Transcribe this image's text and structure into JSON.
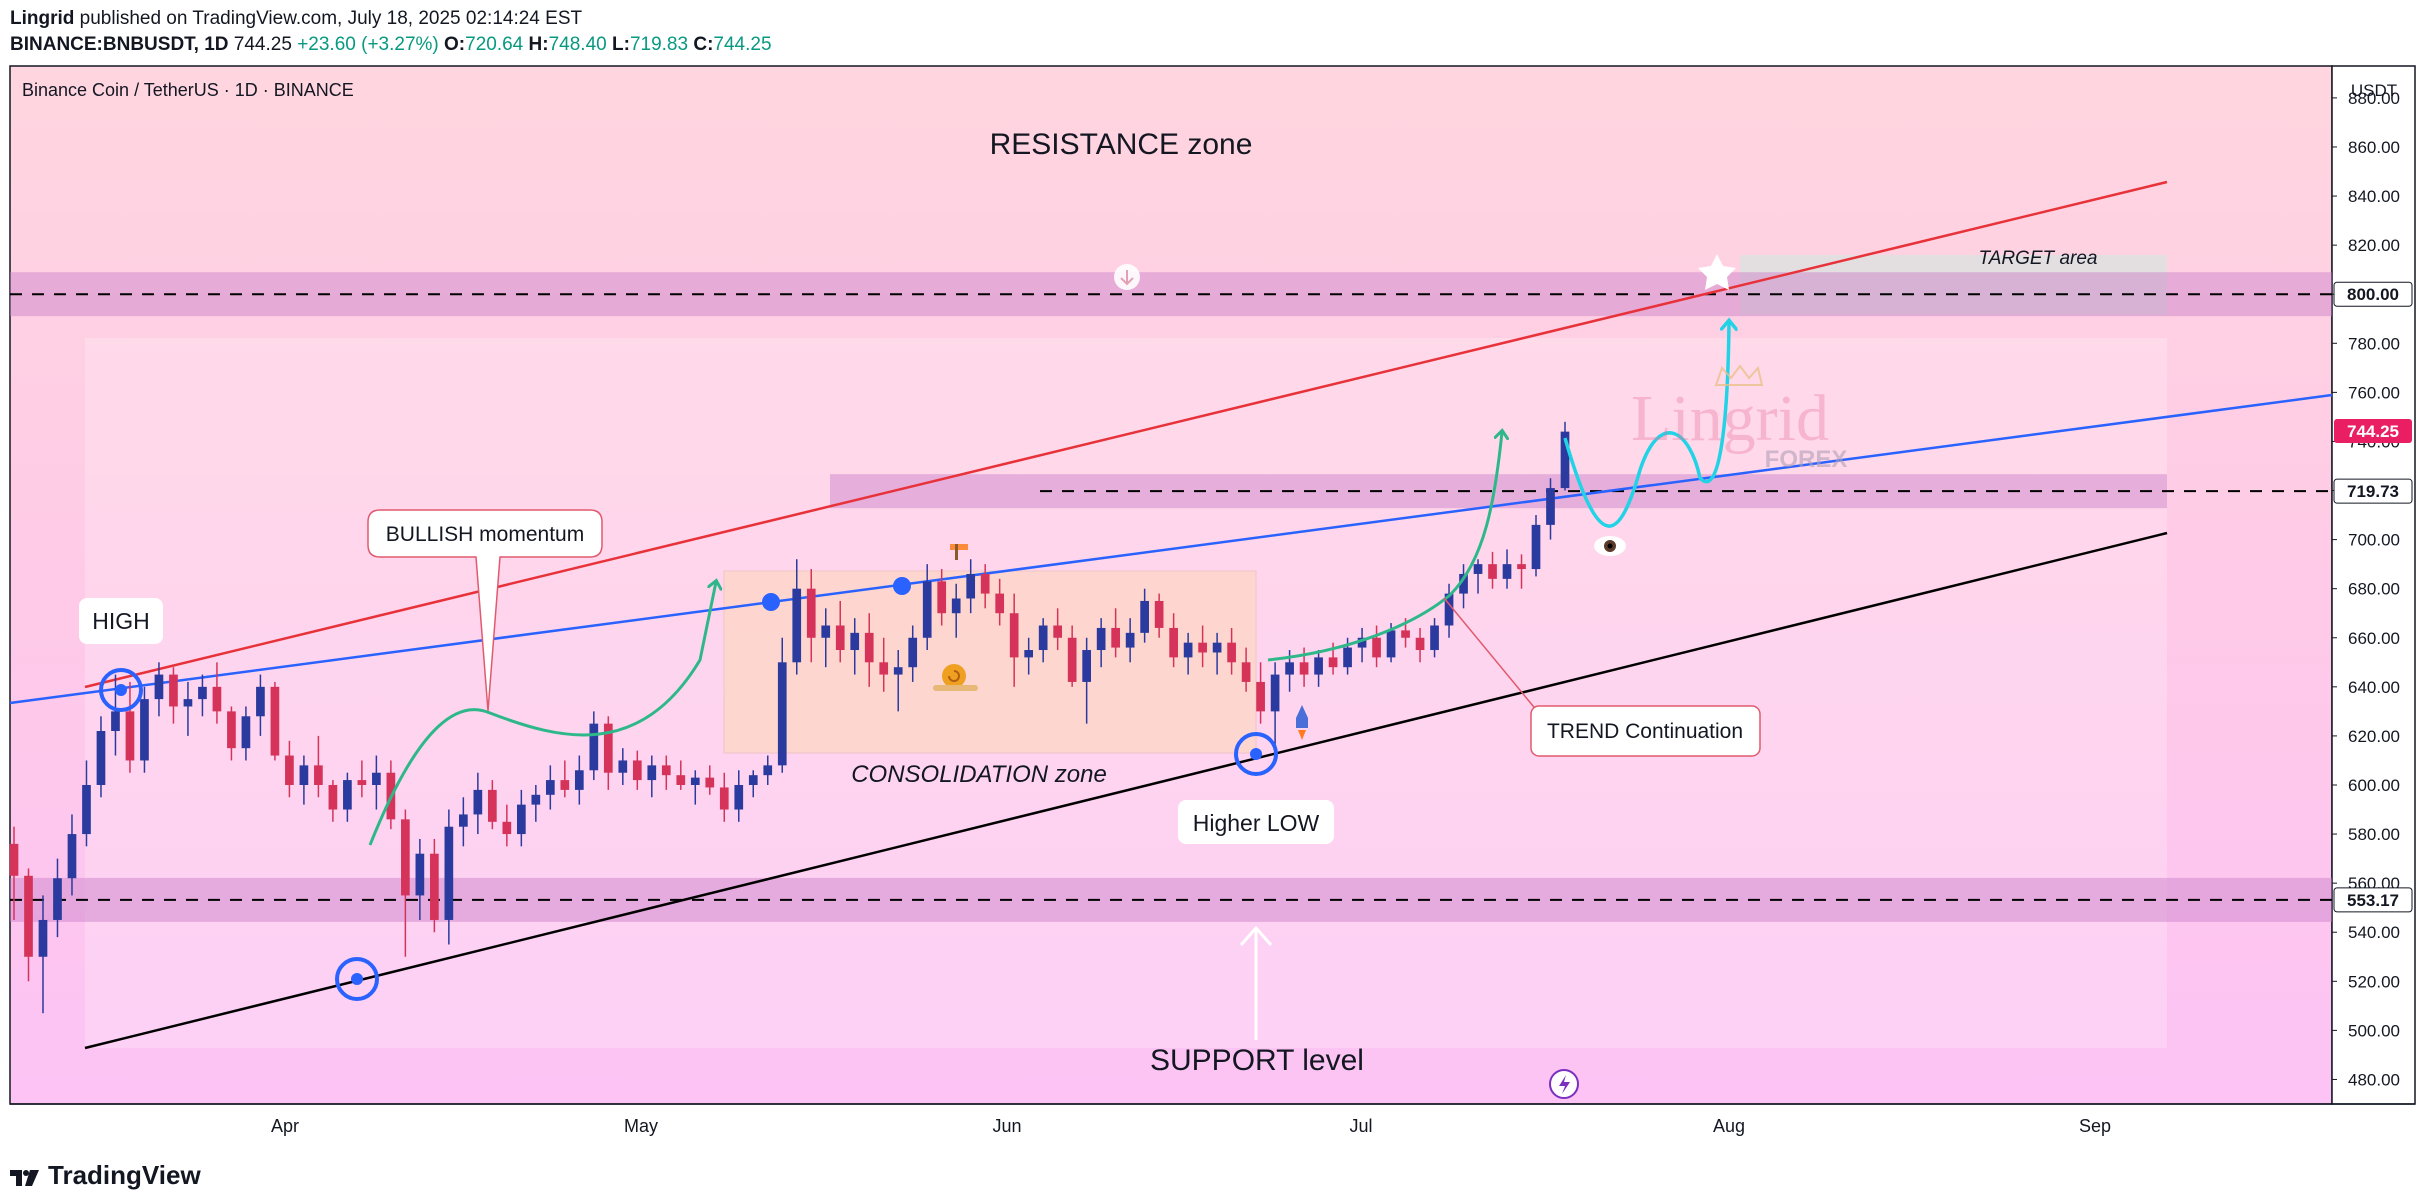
{
  "header": {
    "author": "Lingrid",
    "published": "published on TradingView.com, July 18, 2025 02:14:24 EST",
    "symbol": "BINANCE:BNBUSDT, 1D",
    "last": "744.25",
    "change": "+23.60 (+3.27%)",
    "open_label": "O:",
    "open": "720.64",
    "high_label": "H:",
    "high": "748.40",
    "low_label": "L:",
    "low": "719.83",
    "close_label": "C:",
    "close": "744.25"
  },
  "pane_title": "Binance Coin / TetherUS · 1D · BINANCE",
  "currency": "USDT",
  "footer": {
    "brand": "TradingView"
  },
  "annotations": {
    "resistance": "RESISTANCE zone",
    "target": "TARGET area",
    "bullish": "BULLISH momentum",
    "high": "HIGH",
    "consolidation": "CONSOLIDATION zone",
    "higher_low": "Higher LOW",
    "trend": "TREND Continuation",
    "support": "SUPPORT level",
    "watermark": "Lingrid",
    "watermark_sub": "FOREX"
  },
  "colors": {
    "bull": "#2b3a9e",
    "bear": "#d6335a",
    "resistance_line": "#e8323a",
    "mid_line": "#2962ff",
    "support_line": "#000000",
    "arrow_green": "#2eb88a",
    "arrow_cyan": "#22d3e6",
    "badge_red": "#e91e63",
    "zone_purple": "#c77dc7"
  },
  "chart_data": {
    "type": "candlestick",
    "x_ticks": [
      "Apr",
      "May",
      "Jun",
      "Jul",
      "Aug",
      "Sep"
    ],
    "y_ticks": [
      480,
      500,
      520,
      540,
      560,
      580,
      600,
      620,
      640,
      660,
      680,
      700,
      720,
      740,
      760,
      780,
      800,
      820,
      840,
      860,
      880
    ],
    "y_range": [
      470,
      893
    ],
    "price_labels": [
      {
        "value": 800.0,
        "text": "800.00",
        "style": "black"
      },
      {
        "value": 744.25,
        "text": "744.25",
        "style": "red"
      },
      {
        "value": 719.73,
        "text": "719.73",
        "style": "black"
      },
      {
        "value": 553.17,
        "text": "553.17",
        "style": "black"
      }
    ],
    "horizontal_levels": [
      800.0,
      719.73,
      553.17
    ],
    "candles": [
      [
        576,
        583,
        545,
        563
      ],
      [
        563,
        566,
        520,
        530
      ],
      [
        530,
        555,
        507,
        545
      ],
      [
        545,
        570,
        538,
        562
      ],
      [
        562,
        588,
        555,
        580
      ],
      [
        580,
        610,
        575,
        600
      ],
      [
        600,
        628,
        595,
        622
      ],
      [
        622,
        645,
        612,
        630
      ],
      [
        630,
        642,
        605,
        610
      ],
      [
        610,
        640,
        605,
        635
      ],
      [
        635,
        650,
        628,
        645
      ],
      [
        645,
        648,
        625,
        632
      ],
      [
        632,
        642,
        620,
        635
      ],
      [
        635,
        645,
        628,
        640
      ],
      [
        640,
        650,
        625,
        630
      ],
      [
        630,
        632,
        610,
        615
      ],
      [
        615,
        632,
        610,
        628
      ],
      [
        628,
        645,
        620,
        640
      ],
      [
        640,
        642,
        610,
        612
      ],
      [
        612,
        618,
        595,
        600
      ],
      [
        600,
        612,
        592,
        608
      ],
      [
        608,
        620,
        595,
        600
      ],
      [
        600,
        602,
        585,
        590
      ],
      [
        590,
        605,
        585,
        602
      ],
      [
        602,
        610,
        595,
        600
      ],
      [
        600,
        612,
        590,
        605
      ],
      [
        605,
        610,
        582,
        586
      ],
      [
        586,
        590,
        530,
        555
      ],
      [
        555,
        578,
        545,
        572
      ],
      [
        572,
        578,
        540,
        545
      ],
      [
        545,
        590,
        535,
        583
      ],
      [
        583,
        595,
        575,
        588
      ],
      [
        588,
        605,
        580,
        598
      ],
      [
        598,
        602,
        582,
        585
      ],
      [
        585,
        592,
        575,
        580
      ],
      [
        580,
        598,
        575,
        592
      ],
      [
        592,
        600,
        585,
        596
      ],
      [
        596,
        608,
        590,
        602
      ],
      [
        602,
        610,
        595,
        598
      ],
      [
        598,
        612,
        592,
        606
      ],
      [
        606,
        630,
        602,
        625
      ],
      [
        625,
        628,
        598,
        605
      ],
      [
        605,
        615,
        600,
        610
      ],
      [
        610,
        614,
        598,
        602
      ],
      [
        602,
        612,
        595,
        608
      ],
      [
        608,
        612,
        598,
        604
      ],
      [
        604,
        610,
        598,
        600
      ],
      [
        600,
        606,
        592,
        603
      ],
      [
        603,
        608,
        596,
        599
      ],
      [
        599,
        605,
        585,
        590
      ],
      [
        590,
        606,
        585,
        600
      ],
      [
        600,
        606,
        595,
        604
      ],
      [
        604,
        612,
        600,
        608
      ],
      [
        608,
        660,
        605,
        650
      ],
      [
        650,
        692,
        645,
        680
      ],
      [
        680,
        688,
        650,
        660
      ],
      [
        660,
        672,
        648,
        665
      ],
      [
        665,
        675,
        650,
        655
      ],
      [
        655,
        668,
        645,
        662
      ],
      [
        662,
        670,
        640,
        650
      ],
      [
        650,
        660,
        638,
        645
      ],
      [
        645,
        655,
        630,
        648
      ],
      [
        648,
        665,
        642,
        660
      ],
      [
        660,
        690,
        655,
        683
      ],
      [
        683,
        688,
        665,
        670
      ],
      [
        670,
        682,
        660,
        676
      ],
      [
        676,
        692,
        670,
        686
      ],
      [
        686,
        690,
        672,
        678
      ],
      [
        678,
        684,
        665,
        670
      ],
      [
        670,
        678,
        640,
        652
      ],
      [
        652,
        660,
        645,
        655
      ],
      [
        655,
        668,
        650,
        665
      ],
      [
        665,
        672,
        655,
        660
      ],
      [
        660,
        665,
        640,
        642
      ],
      [
        642,
        660,
        625,
        655
      ],
      [
        655,
        668,
        648,
        664
      ],
      [
        664,
        672,
        652,
        656
      ],
      [
        656,
        668,
        650,
        662
      ],
      [
        662,
        680,
        658,
        675
      ],
      [
        675,
        678,
        660,
        664
      ],
      [
        664,
        670,
        648,
        652
      ],
      [
        652,
        662,
        645,
        658
      ],
      [
        658,
        665,
        648,
        654
      ],
      [
        654,
        662,
        645,
        658
      ],
      [
        658,
        664,
        645,
        650
      ],
      [
        650,
        656,
        638,
        642
      ],
      [
        642,
        650,
        625,
        630
      ],
      [
        630,
        650,
        615,
        645
      ],
      [
        645,
        655,
        638,
        650
      ],
      [
        650,
        656,
        640,
        645
      ],
      [
        645,
        655,
        640,
        652
      ],
      [
        652,
        658,
        645,
        648
      ],
      [
        648,
        660,
        645,
        656
      ],
      [
        656,
        664,
        650,
        660
      ],
      [
        660,
        665,
        648,
        652
      ],
      [
        652,
        666,
        650,
        663
      ],
      [
        663,
        668,
        656,
        660
      ],
      [
        660,
        664,
        650,
        655
      ],
      [
        655,
        668,
        652,
        665
      ],
      [
        665,
        682,
        660,
        678
      ],
      [
        678,
        690,
        672,
        686
      ],
      [
        686,
        692,
        678,
        690
      ],
      [
        690,
        695,
        680,
        684
      ],
      [
        684,
        696,
        680,
        690
      ],
      [
        690,
        694,
        680,
        688
      ],
      [
        688,
        710,
        685,
        706
      ],
      [
        706,
        725,
        700,
        721
      ],
      [
        721,
        748,
        720,
        744
      ]
    ]
  }
}
